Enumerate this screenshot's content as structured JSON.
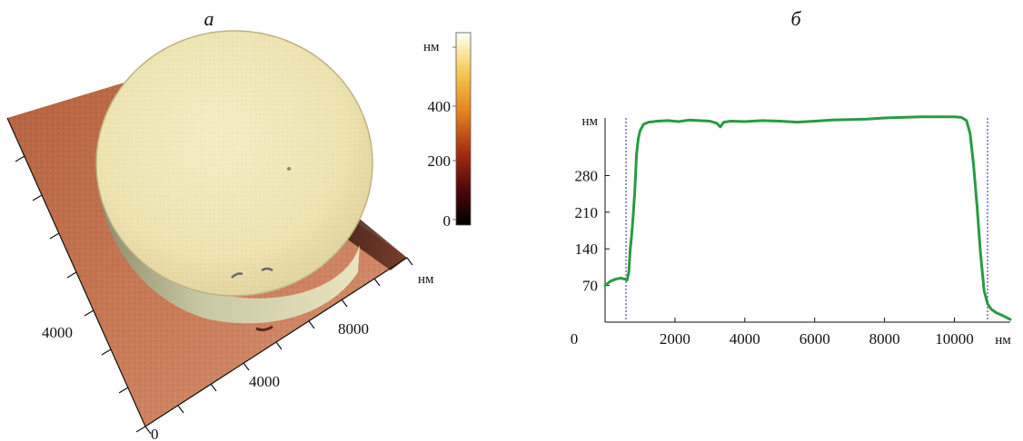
{
  "panel_a": {
    "label": "а",
    "colorbar": {
      "unit": "нм",
      "ticks": [
        "400",
        "200",
        "0"
      ],
      "min": 0,
      "max": 500
    },
    "axes": {
      "right_axis_unit": "нм",
      "right_axis_ticks": [
        "8000",
        "4000",
        "0"
      ],
      "left_axis_ticks": [
        "4000"
      ]
    }
  },
  "chart_data": {
    "type": "line",
    "label": "б",
    "title": "",
    "xlabel": "нм",
    "ylabel": "нм",
    "xlim": [
      0,
      11600
    ],
    "ylim": [
      0,
      390
    ],
    "x_ticks": [
      0,
      2000,
      4000,
      6000,
      8000,
      10000
    ],
    "y_ticks": [
      70,
      140,
      210,
      280
    ],
    "series": [
      {
        "color": "#2a9a44",
        "x": [
          0,
          150,
          300,
          450,
          570,
          630,
          680,
          720,
          760,
          800,
          850,
          900,
          950,
          1000,
          1100,
          1250,
          1500,
          1800,
          2100,
          2400,
          2700,
          3000,
          3200,
          3300,
          3400,
          3600,
          4000,
          4500,
          5000,
          5500,
          6000,
          6500,
          7000,
          7500,
          8000,
          8500,
          9000,
          9500,
          10000,
          10200,
          10350,
          10450,
          10550,
          10650,
          10750,
          10850,
          10950,
          11050,
          11200,
          11400,
          11600
        ],
        "y": [
          70,
          78,
          82,
          84,
          82,
          80,
          95,
          140,
          165,
          200,
          250,
          320,
          350,
          365,
          378,
          382,
          384,
          385,
          383,
          386,
          385,
          384,
          380,
          373,
          382,
          384,
          383,
          385,
          384,
          382,
          384,
          386,
          387,
          388,
          390,
          391,
          392,
          392,
          392,
          391,
          385,
          360,
          300,
          220,
          130,
          60,
          35,
          25,
          18,
          12,
          5
        ]
      }
    ],
    "reference_lines_x": [
      600,
      10950
    ]
  }
}
